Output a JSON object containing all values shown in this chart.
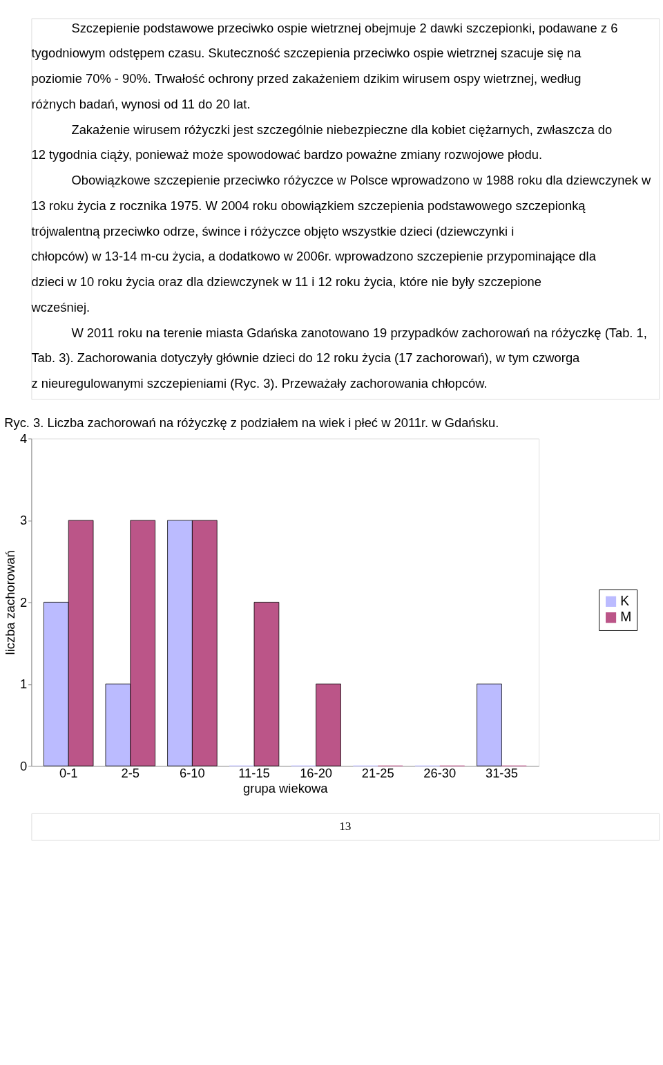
{
  "chart_data": {
    "type": "bar",
    "title": "Ryc. 3. Liczba zachorowań na różyczkę z podziałem na wiek i płeć w 2011r. w Gdańsku.",
    "xlabel": "grupa wiekowa",
    "ylabel": "liczba zachorowań",
    "categories": [
      "0-1",
      "2-5",
      "6-10",
      "11-15",
      "16-20",
      "21-25",
      "26-30",
      "31-35"
    ],
    "series": [
      {
        "name": "K",
        "color": "#bbbbff",
        "values": [
          2,
          1,
          3,
          0,
          0,
          0,
          0,
          1
        ]
      },
      {
        "name": "M",
        "color": "#bb5588",
        "values": [
          3,
          3,
          3,
          2,
          1,
          0,
          0,
          0
        ]
      }
    ],
    "ylim": [
      0,
      4
    ],
    "yticks": [
      0,
      1,
      2,
      3,
      4
    ],
    "grid": false,
    "legend": "right",
    "annotations": [
      "Szczepienie podstawowe przeciwko ospie wietrznej obejmuje 2 dawki szczepionki, podawane z 6 tygodniowym odstępem czasu. Skuteczność szczepienia przeciwko ospie wietrznej szacuje się na poziomie 70% - 90%. Trwałość ochrony przed zakażeniem dzikim wirusem ospy wietrznej, według różnych badań, wynosi od 11 do 20 lat.",
      "Zakażenie wirusem różyczki jest szczególnie niebezpieczne dla kobiet ciężarnych, zwłaszcza do 12 tygodnia ciąży, ponieważ może spowodować bardzo poważne zmiany rozwojowe płodu.",
      "Obowiązkowe szczepienie przeciwko różyczce w Polsce wprowadzono w 1988 roku dla dziewczynek w 13 roku życia z rocznika 1975. W 2004 roku obowiązkiem szczepienia podstawowego szczepionką trójwalentną przeciwko odrze, śwince i różyczce objęto wszystkie dzieci (dziewczynki i chłopców) w 13-14 m-cu życia, a dodatkowo w 2006r. wprowadzono szczepienie przypominające dla dzieci w 10 roku życia oraz dla dziewczynek w 11 i 12 roku życia, które nie były szczepione wcześniej.",
      "W 2011 roku na terenie miasta Gdańska zanotowano 19 przypadków zachorowań na różyczkę (Tab. 1, Tab. 3). Zachorowania dotyczyły głównie dzieci do 12 roku życia (17 zachorowań), w tym czworga z nieuregulowanymi szczepieniami (Ryc. 3). Przeważały zachorowania chłopców.",
      "13"
    ]
  }
}
